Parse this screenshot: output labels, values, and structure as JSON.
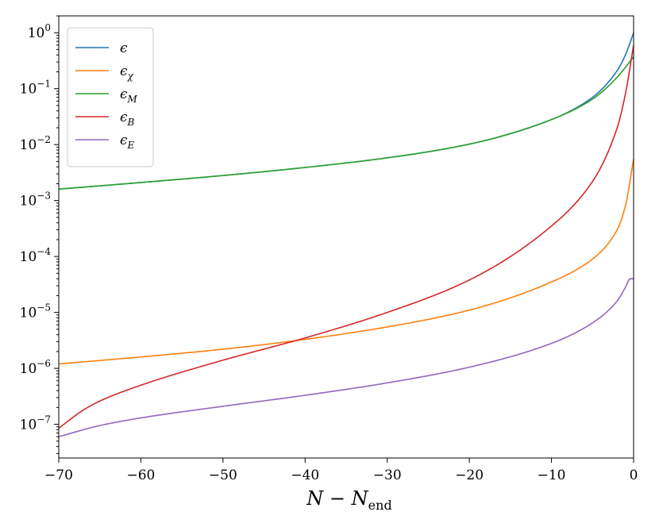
{
  "chart_data": {
    "type": "line",
    "title": "",
    "xlabel": "N − N_end",
    "xlabel_main": "N − N",
    "xlabel_sub": "end",
    "ylabel": "",
    "xlim": [
      -70,
      0
    ],
    "ylim": [
      2.5e-08,
      2.0
    ],
    "yscale": "log",
    "grid": false,
    "legend_position": "top-left",
    "x_ticks": [
      -70,
      -60,
      -50,
      -40,
      -30,
      -20,
      -10,
      0
    ],
    "x_tick_labels": [
      "−70",
      "−60",
      "−50",
      "−40",
      "−30",
      "−20",
      "−10",
      "0"
    ],
    "y_ticks": [
      {
        "base": "10",
        "exp": "−7",
        "value": 1e-07
      },
      {
        "base": "10",
        "exp": "−6",
        "value": 1e-06
      },
      {
        "base": "10",
        "exp": "−5",
        "value": 1e-05
      },
      {
        "base": "10",
        "exp": "−4",
        "value": 0.0001
      },
      {
        "base": "10",
        "exp": "−3",
        "value": 0.001
      },
      {
        "base": "10",
        "exp": "−2",
        "value": 0.01
      },
      {
        "base": "10",
        "exp": "−1",
        "value": 0.1
      },
      {
        "base": "10",
        "exp": "0",
        "value": 1
      }
    ],
    "series": [
      {
        "name": "ϵ",
        "label_main": "ϵ",
        "label_sub": "",
        "color": "#1f77b4",
        "x": [
          -70,
          -60,
          -50,
          -40,
          -30,
          -20,
          -10,
          -5,
          -2,
          -1,
          -0.5,
          0
        ],
        "y": [
          0.0016,
          0.0021,
          0.0028,
          0.0039,
          0.0058,
          0.0102,
          0.028,
          0.07,
          0.21,
          0.4,
          0.62,
          1.0
        ]
      },
      {
        "name": "ϵχ",
        "label_main": "ϵ",
        "label_sub": "χ",
        "color": "#ff7f0e",
        "x": [
          -70,
          -60,
          -50,
          -40,
          -30,
          -20,
          -10,
          -5,
          -2,
          -1,
          0
        ],
        "y": [
          1.2e-06,
          1.6e-06,
          2.2e-06,
          3.3e-06,
          5.5e-06,
          1.1e-05,
          3.5e-05,
          9e-05,
          0.0003,
          0.0008,
          0.0055
        ]
      },
      {
        "name": "ϵM",
        "label_main": "ϵ",
        "label_sub": "M",
        "color": "#2ca02c",
        "x": [
          -70,
          -60,
          -50,
          -40,
          -30,
          -20,
          -10,
          -5,
          -2,
          -1,
          0
        ],
        "y": [
          0.0016,
          0.0021,
          0.0028,
          0.0039,
          0.0058,
          0.0102,
          0.028,
          0.065,
          0.16,
          0.24,
          0.37
        ]
      },
      {
        "name": "ϵB",
        "label_main": "ϵ",
        "label_sub": "B",
        "color": "#d62728",
        "x": [
          -70,
          -67,
          -65,
          -60,
          -50,
          -40,
          -30,
          -20,
          -10,
          -5,
          -2,
          -1,
          0
        ],
        "y": [
          8.5e-08,
          1.8e-07,
          2.6e-07,
          5e-07,
          1.4e-06,
          3.5e-06,
          1e-05,
          3.8e-05,
          0.00035,
          0.0022,
          0.02,
          0.08,
          0.6
        ]
      },
      {
        "name": "ϵE",
        "label_main": "ϵ",
        "label_sub": "E",
        "color": "#9467bd",
        "x": [
          -70,
          -65,
          -60,
          -50,
          -40,
          -30,
          -20,
          -10,
          -5,
          -2,
          -1,
          -0.4,
          0
        ],
        "y": [
          6e-08,
          9.5e-08,
          1.3e-07,
          2.1e-07,
          3.3e-07,
          5.5e-07,
          1.05e-06,
          2.8e-06,
          6.5e-06,
          1.6e-05,
          2.8e-05,
          4e-05,
          4e-05
        ]
      }
    ]
  }
}
